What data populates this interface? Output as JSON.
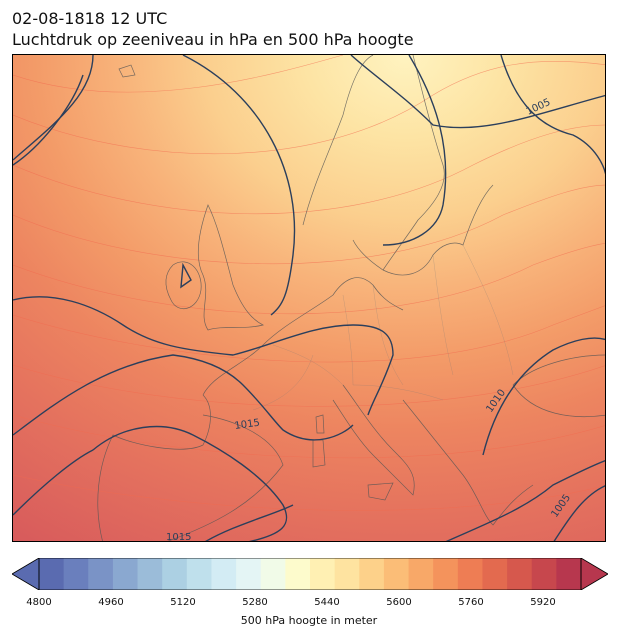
{
  "title": {
    "line1": "02-08-1818 12 UTC",
    "line2": "Luchtdruk op zeeniveau in hPa en 500 hPa hoogte"
  },
  "map": {
    "isobar_labels": [
      {
        "id": "lbl-1005",
        "text": "1005"
      },
      {
        "id": "lbl-1010",
        "text": "1010"
      },
      {
        "id": "lbl-1015-a",
        "text": "1015"
      },
      {
        "id": "lbl-1015-b",
        "text": "1015"
      },
      {
        "id": "lbl-1005-b",
        "text": "1005"
      }
    ]
  },
  "colorbar": {
    "label": "500 hPa hoogte in meter",
    "ticks": [
      "4800",
      "4960",
      "5120",
      "5280",
      "5440",
      "5600",
      "5760",
      "5920"
    ],
    "colors": [
      "#5a6bb0",
      "#6a7fbd",
      "#7a93c6",
      "#8aa8d0",
      "#9bbcd9",
      "#acd0e3",
      "#bfe0ec",
      "#d3ecf4",
      "#e4f5f5",
      "#f1fbe8",
      "#fdfbcc",
      "#fff0b3",
      "#fee3a0",
      "#fdd18a",
      "#fbbd77",
      "#f8a868",
      "#f4935c",
      "#ee7d54",
      "#e36a4f",
      "#d6584d",
      "#c7474d",
      "#b7374e"
    ]
  }
}
